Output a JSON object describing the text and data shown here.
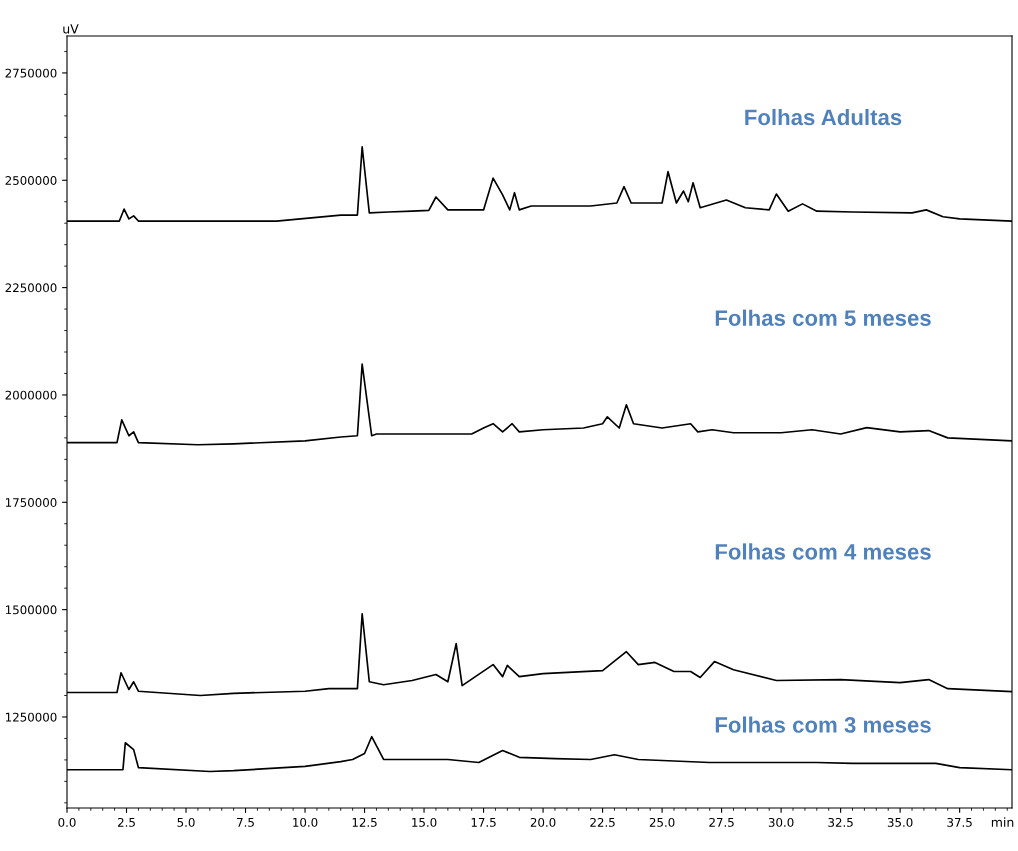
{
  "chart_data": {
    "type": "line",
    "xlabel": "min",
    "ylabel": "uV",
    "xlim": [
      0,
      39.7
    ],
    "ylim": [
      1038000,
      2836000
    ],
    "xticks": [
      {
        "value": 0,
        "label": "0.0"
      },
      {
        "value": 2.5,
        "label": "2.5"
      },
      {
        "value": 5,
        "label": "5.0"
      },
      {
        "value": 7.5,
        "label": "7.5"
      },
      {
        "value": 10,
        "label": "10.0"
      },
      {
        "value": 12.5,
        "label": "12.5"
      },
      {
        "value": 15,
        "label": "15.0"
      },
      {
        "value": 17.5,
        "label": "17.5"
      },
      {
        "value": 20,
        "label": "20.0"
      },
      {
        "value": 22.5,
        "label": "22.5"
      },
      {
        "value": 25,
        "label": "25.0"
      },
      {
        "value": 27.5,
        "label": "27.5"
      },
      {
        "value": 30,
        "label": "30.0"
      },
      {
        "value": 32.5,
        "label": "32.5"
      },
      {
        "value": 35,
        "label": "35.0"
      },
      {
        "value": 37.5,
        "label": "37.5"
      }
    ],
    "yticks": [
      1250000,
      1500000,
      1750000,
      2000000,
      2250000,
      2500000,
      2750000
    ],
    "annotations": [
      "Folhas Adultas",
      "Folhas com 5 meses",
      "Folhas com 4 meses",
      "Folhas com 3 meses"
    ],
    "grid": false,
    "legend": false,
    "marker": "none",
    "line_style": "solid",
    "series": [
      {
        "color": "#000000",
        "x": [
          0,
          2.2,
          2.4,
          2.6,
          2.8,
          3.0,
          8.8,
          11.5,
          12.2,
          12.4,
          12.7,
          13.5,
          14.5,
          15.2,
          15.5,
          16,
          17.5,
          17.9,
          18.3,
          18.6,
          18.8,
          19,
          19.5,
          22,
          23.1,
          23.4,
          23.7,
          25,
          25.25,
          25.6,
          25.9,
          26.1,
          26.3,
          26.6,
          27.7,
          28.5,
          29.5,
          29.8,
          30.3,
          30.9,
          31.5,
          33,
          35.5,
          36.1,
          36.8,
          37.5,
          39.7
        ],
        "values": [
          2405000,
          2405000,
          2433000,
          2410000,
          2417000,
          2405000,
          2405000,
          2419000,
          2419000,
          2578000,
          2424000,
          2426000,
          2428000,
          2430000,
          2461000,
          2431000,
          2431000,
          2505000,
          2466000,
          2431000,
          2471000,
          2431000,
          2440000,
          2440000,
          2447000,
          2485000,
          2447000,
          2447000,
          2520000,
          2447000,
          2475000,
          2450000,
          2494000,
          2436000,
          2454000,
          2436000,
          2431000,
          2468000,
          2428000,
          2445000,
          2428000,
          2426000,
          2424000,
          2431000,
          2415000,
          2410000,
          2405000
        ]
      },
      {
        "color": "#000000",
        "x": [
          0,
          2.1,
          2.3,
          2.6,
          2.8,
          3.0,
          5.5,
          7,
          10,
          11.5,
          12.2,
          12.4,
          12.8,
          13,
          17,
          17.5,
          17.9,
          18.3,
          18.7,
          19,
          20,
          21.7,
          22.5,
          22.7,
          23.2,
          23.5,
          23.8,
          25,
          26.2,
          26.5,
          27.1,
          28,
          30,
          31.3,
          32.5,
          33.6,
          35,
          36.2,
          37,
          39.7
        ],
        "values": [
          1889000,
          1889000,
          1942000,
          1905000,
          1914000,
          1889000,
          1884000,
          1886000,
          1893000,
          1902000,
          1905000,
          2072000,
          1905000,
          1909000,
          1909000,
          1923000,
          1933000,
          1914000,
          1933000,
          1914000,
          1919000,
          1923000,
          1933000,
          1949000,
          1923000,
          1977000,
          1933000,
          1923000,
          1933000,
          1914000,
          1919000,
          1912000,
          1912000,
          1919000,
          1909000,
          1924000,
          1914000,
          1917000,
          1900000,
          1893000
        ]
      },
      {
        "color": "#000000",
        "x": [
          0,
          2.1,
          2.27,
          2.6,
          2.8,
          3.0,
          5.6,
          7,
          10,
          11,
          12.2,
          12.4,
          12.7,
          13.3,
          14.5,
          15.5,
          16,
          16.35,
          16.6,
          17.9,
          18.3,
          18.5,
          19,
          20,
          22.5,
          23.5,
          24,
          24.7,
          25.5,
          26.2,
          26.6,
          27.2,
          28,
          29.8,
          32.5,
          35,
          36.2,
          37,
          39.7
        ],
        "values": [
          1307000,
          1307000,
          1353000,
          1314000,
          1332000,
          1310000,
          1300000,
          1305000,
          1310000,
          1316000,
          1316000,
          1490000,
          1332000,
          1325000,
          1335000,
          1349000,
          1332000,
          1421000,
          1323000,
          1372000,
          1344000,
          1370000,
          1344000,
          1351000,
          1358000,
          1402000,
          1372000,
          1377000,
          1356000,
          1356000,
          1342000,
          1379000,
          1360000,
          1335000,
          1337000,
          1330000,
          1337000,
          1316000,
          1309000
        ]
      },
      {
        "color": "#000000",
        "x": [
          0,
          2.35,
          2.45,
          2.8,
          3.0,
          6,
          7,
          10,
          11.5,
          12.0,
          12.5,
          12.8,
          13.3,
          14,
          16,
          17.3,
          18.3,
          19,
          20.5,
          22,
          23.0,
          24,
          27,
          31.5,
          33,
          36.5,
          37.5,
          39.7
        ],
        "values": [
          1127000,
          1127000,
          1190000,
          1174000,
          1132000,
          1123000,
          1125000,
          1135000,
          1146000,
          1151000,
          1165000,
          1204000,
          1151000,
          1151000,
          1151000,
          1144000,
          1172000,
          1156000,
          1153000,
          1151000,
          1162000,
          1151000,
          1144000,
          1144000,
          1142000,
          1142000,
          1132000,
          1127000
        ]
      }
    ]
  }
}
